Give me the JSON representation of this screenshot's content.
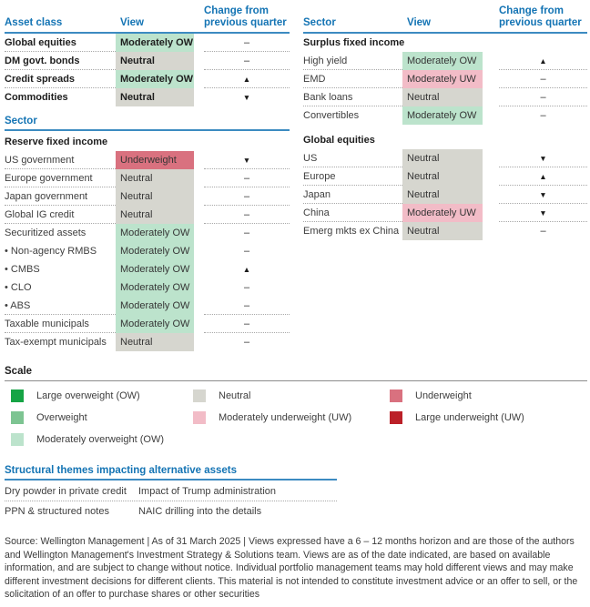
{
  "colors": {
    "blue": "#1474b4",
    "rule_blue": "#3c8bc1",
    "low": "#16a445",
    "ow": "#7dc492",
    "mow": "#bce3cc",
    "neu": "#d6d6cf",
    "muw": "#f2bcc7",
    "uw": "#d9717f",
    "luw": "#bb2028"
  },
  "left_table": {
    "header": {
      "col1": "Asset class",
      "col2": "View",
      "col3": "Change from previous quarter"
    },
    "top_rows": [
      {
        "label": "Global equities",
        "view": "Moderately OW",
        "tone": "mow",
        "change": "–",
        "bold": true,
        "sep": true
      },
      {
        "label": "DM govt. bonds",
        "view": "Neutral",
        "tone": "neu",
        "change": "–",
        "bold": true,
        "sep": true
      },
      {
        "label": "Credit spreads",
        "view": "Moderately OW",
        "tone": "mow",
        "change": "▲",
        "bold": true,
        "sep": true
      },
      {
        "label": "Commodities",
        "view": "Neutral",
        "tone": "neu",
        "change": "▼",
        "bold": true,
        "sep": false
      }
    ],
    "sector_title": "Sector",
    "group_label": "Reserve fixed income",
    "sector_rows": [
      {
        "label": "US government",
        "view": "Underweight",
        "tone": "uw",
        "change": "▼",
        "bold": false,
        "sep": true
      },
      {
        "label": "Europe government",
        "view": "Neutral",
        "tone": "neu",
        "change": "–",
        "bold": false,
        "sep": true
      },
      {
        "label": "Japan government",
        "view": "Neutral",
        "tone": "neu",
        "change": "–",
        "bold": false,
        "sep": true
      },
      {
        "label": "Global IG credit",
        "view": "Neutral",
        "tone": "neu",
        "change": "–",
        "bold": false,
        "sep": true
      },
      {
        "label": "Securitized assets",
        "view": "Moderately OW",
        "tone": "mow",
        "change": "–",
        "bold": false,
        "sep": false
      },
      {
        "label": "• Non-agency RMBS",
        "view": "Moderately OW",
        "tone": "mow",
        "change": "–",
        "bold": false,
        "sep": false
      },
      {
        "label": "• CMBS",
        "view": "Moderately OW",
        "tone": "mow",
        "change": "▲",
        "bold": false,
        "sep": false
      },
      {
        "label": "• CLO",
        "view": "Moderately OW",
        "tone": "mow",
        "change": "–",
        "bold": false,
        "sep": false
      },
      {
        "label": "• ABS",
        "view": "Moderately OW",
        "tone": "mow",
        "change": "–",
        "bold": false,
        "sep": true
      },
      {
        "label": "Taxable municipals",
        "view": "Moderately OW",
        "tone": "mow",
        "change": "–",
        "bold": false,
        "sep": true
      },
      {
        "label": "Tax-exempt municipals",
        "view": "Neutral",
        "tone": "neu",
        "change": "–",
        "bold": false,
        "sep": false
      }
    ]
  },
  "right_table": {
    "header": {
      "col1": "Sector",
      "col2": "View",
      "col3": "Change from previous quarter"
    },
    "group1_label": "Surplus fixed income",
    "group1_rows": [
      {
        "label": "High yield",
        "view": "Moderately OW",
        "tone": "mow",
        "change": "▲",
        "bold": false,
        "sep": true
      },
      {
        "label": "EMD",
        "view": "Moderately UW",
        "tone": "muw",
        "change": "–",
        "bold": false,
        "sep": true
      },
      {
        "label": "Bank loans",
        "view": "Neutral",
        "tone": "neu",
        "change": "–",
        "bold": false,
        "sep": true
      },
      {
        "label": "Convertibles",
        "view": "Moderately OW",
        "tone": "mow",
        "change": "–",
        "bold": false,
        "sep": false
      }
    ],
    "group2_label": "Global equities",
    "group2_rows": [
      {
        "label": "US",
        "view": "Neutral",
        "tone": "neu",
        "change": "▼",
        "bold": false,
        "sep": true
      },
      {
        "label": "Europe",
        "view": "Neutral",
        "tone": "neu",
        "change": "▲",
        "bold": false,
        "sep": true
      },
      {
        "label": "Japan",
        "view": "Neutral",
        "tone": "neu",
        "change": "▼",
        "bold": false,
        "sep": true
      },
      {
        "label": "China",
        "view": "Moderately UW",
        "tone": "muw",
        "change": "▼",
        "bold": false,
        "sep": true
      },
      {
        "label": "Emerg mkts ex China",
        "view": "Neutral",
        "tone": "neu",
        "change": "–",
        "bold": false,
        "sep": false
      }
    ]
  },
  "scale": {
    "title": "Scale",
    "columns": [
      [
        {
          "tone": "low",
          "label": "Large overweight (OW)"
        },
        {
          "tone": "ow",
          "label": "Overweight"
        },
        {
          "tone": "mow",
          "label": "Moderately overweight (OW)"
        }
      ],
      [
        {
          "tone": "neu",
          "label": "Neutral"
        },
        {
          "tone": "muw",
          "label": "Moderately underweight (UW)"
        }
      ],
      [
        {
          "tone": "uw",
          "label": "Underweight"
        },
        {
          "tone": "luw",
          "label": "Large underweight (UW)"
        }
      ]
    ]
  },
  "themes": {
    "title": "Structural themes impacting alternative assets",
    "rows": [
      {
        "col1": "Dry powder in private credit",
        "col2": "Impact of Trump administration"
      },
      {
        "col1": "PPN & structured notes",
        "col2": "NAIC drilling into the details"
      }
    ]
  },
  "footer": {
    "text": "Source: Wellington Management  |  As of 31 March 2025  |  Views expressed have a 6 – 12 months horizon and are those of the authors and Wellington Management's Investment Strategy & Solutions team. Views are as of the date indicated, are based on available information, and are subject to change without notice. Individual portfolio management teams may hold different views and may make different investment decisions for different clients. This material is not intended to constitute investment advice or an offer to sell, or the solicitation of an offer to purchase shares or other securities"
  }
}
